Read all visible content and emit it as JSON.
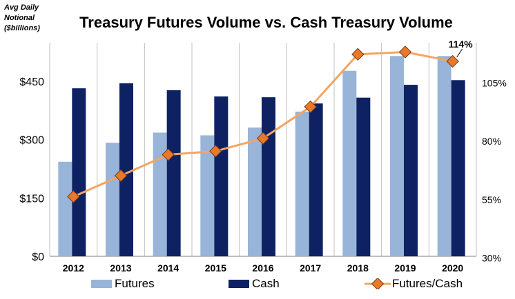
{
  "header": {
    "ylabel_lines": [
      "Avg Daily",
      "Notional",
      "($billions)"
    ],
    "title": "Treasury Futures Volume vs. Cash Treasury Volume"
  },
  "legend": {
    "futures": "Futures",
    "cash": "Cash",
    "ratio": "Futures/Cash"
  },
  "colors": {
    "futures": "#98B4D9",
    "cash": "#0E2263",
    "ratio_line": "#F4A460",
    "ratio_marker": "#E8792A",
    "grid": "#BFBFBF"
  },
  "chart_data": {
    "type": "bar",
    "title": "Treasury Futures Volume vs. Cash Treasury Volume",
    "ylabel": "Avg Daily Notional ($billions)",
    "categories": [
      "2012",
      "2013",
      "2014",
      "2015",
      "2016",
      "2017",
      "2018",
      "2019",
      "2020"
    ],
    "series": [
      {
        "name": "Futures",
        "type": "bar",
        "axis": "left",
        "values": [
          243,
          292,
          318,
          311,
          331,
          372,
          477,
          515,
          515
        ]
      },
      {
        "name": "Cash",
        "type": "bar",
        "axis": "left",
        "values": [
          432,
          445,
          427,
          411,
          409,
          393,
          408,
          441,
          453
        ]
      },
      {
        "name": "Futures/Cash",
        "type": "line",
        "axis": "right",
        "values": [
          56,
          65,
          74,
          75.5,
          81,
          94.5,
          117,
          118,
          114
        ]
      }
    ],
    "ylim_left": [
      0,
      450
    ],
    "yticks_left": [
      "$0",
      "$150",
      "$300",
      "$450"
    ],
    "ylim_right": [
      30,
      105
    ],
    "yticks_right": [
      "30%",
      "55%",
      "80%",
      "105%"
    ],
    "annotation": {
      "category": "2020",
      "text": "114%"
    },
    "grid": "vertical",
    "legend_position": "bottom"
  }
}
